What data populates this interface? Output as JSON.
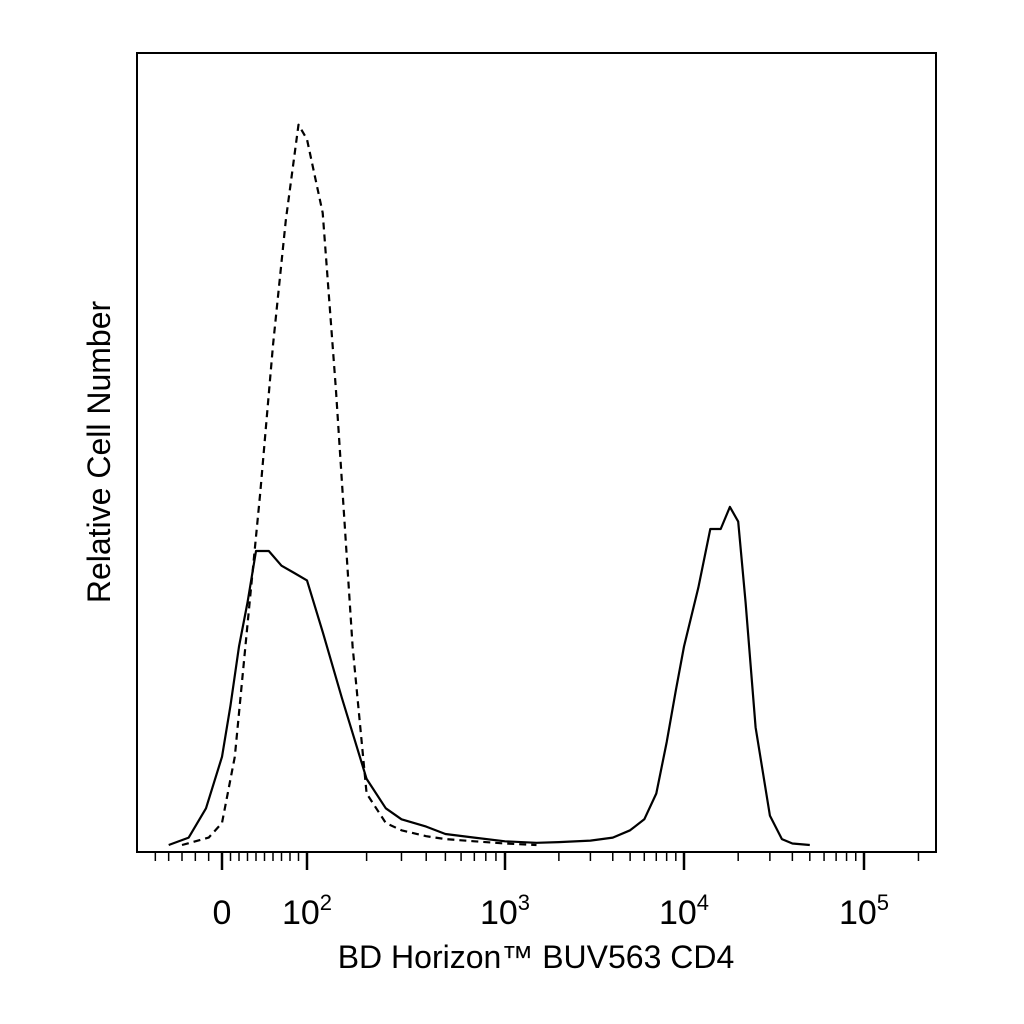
{
  "chart_data": {
    "type": "line",
    "title": "",
    "xlabel": "BD Horizon™ BUV563 CD4",
    "ylabel": "Relative Cell Number",
    "x_scale": "biexponential (log above 10^2)",
    "xlim": [
      -40,
      250000
    ],
    "ylim": [
      0,
      100
    ],
    "grid": false,
    "legend": "none",
    "x_ticks": [
      {
        "value": 0,
        "label": "0",
        "sup": ""
      },
      {
        "value": 100,
        "label": "10",
        "sup": "2"
      },
      {
        "value": 1000,
        "label": "10",
        "sup": "3"
      },
      {
        "value": 10000,
        "label": "10",
        "sup": "4"
      },
      {
        "value": 100000,
        "label": "10",
        "sup": "5"
      }
    ],
    "series": [
      {
        "style": "solid",
        "x": [
          -40,
          -25,
          -12,
          0,
          10,
          20,
          30,
          40,
          55,
          70,
          85,
          100,
          120,
          150,
          200,
          250,
          300,
          400,
          500,
          700,
          1000,
          1500,
          2000,
          3000,
          4000,
          5000,
          6000,
          7000,
          8000,
          9000,
          10000,
          12000,
          14000,
          16000,
          18000,
          20000,
          22000,
          25000,
          30000,
          35000,
          40000,
          50000
        ],
        "y": [
          0,
          1,
          5,
          12,
          19,
          27,
          33,
          40,
          40,
          38,
          37,
          36,
          29,
          20,
          9,
          5,
          3.5,
          2.5,
          1.5,
          1,
          0.5,
          0.3,
          0.4,
          0.6,
          1,
          2,
          3.5,
          7,
          14,
          21,
          27,
          35,
          43,
          43,
          46,
          44,
          33,
          16,
          4,
          0.8,
          0.2,
          0
        ]
      },
      {
        "style": "dashed",
        "x": [
          -30,
          -10,
          0,
          15,
          30,
          45,
          60,
          75,
          90,
          100,
          120,
          140,
          170,
          200,
          250,
          300,
          400,
          500,
          700,
          1000,
          1500
        ],
        "y": [
          0,
          1,
          3,
          12,
          30,
          48,
          68,
          85,
          98,
          96,
          86,
          62,
          27,
          7,
          3,
          2,
          1.2,
          0.8,
          0.5,
          0.2,
          0
        ]
      }
    ]
  }
}
